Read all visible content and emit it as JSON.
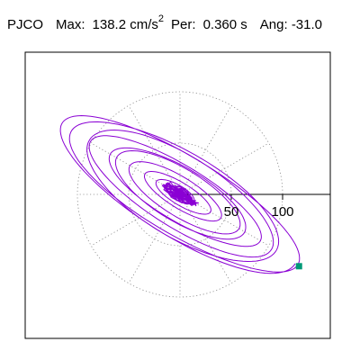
{
  "header": {
    "station": "PJCO",
    "max_label": "Max:",
    "max_value": "138.2",
    "max_unit": "cm/s",
    "max_unit_exp": "2",
    "per_label": "Per:",
    "per_value": "0.360",
    "per_unit": "s",
    "ang_label": "Ang:",
    "ang_value": "-31.0"
  },
  "chart_data": {
    "type": "scatter",
    "title": "",
    "xlabel": "",
    "ylabel": "",
    "tick_labels": [
      "50",
      "100"
    ],
    "ring_values": [
      50,
      100
    ],
    "xlim": [
      -145,
      145
    ],
    "ylim": [
      -140,
      140
    ],
    "grid": "polar dotted",
    "max_amplitude": 138.2,
    "angle_deg": -31.0,
    "end_marker": {
      "x": 116,
      "y": -70
    },
    "colors": {
      "trace": "#8a00d4",
      "marker": "#009977",
      "grid": "#888888",
      "axis": "#000000"
    }
  }
}
